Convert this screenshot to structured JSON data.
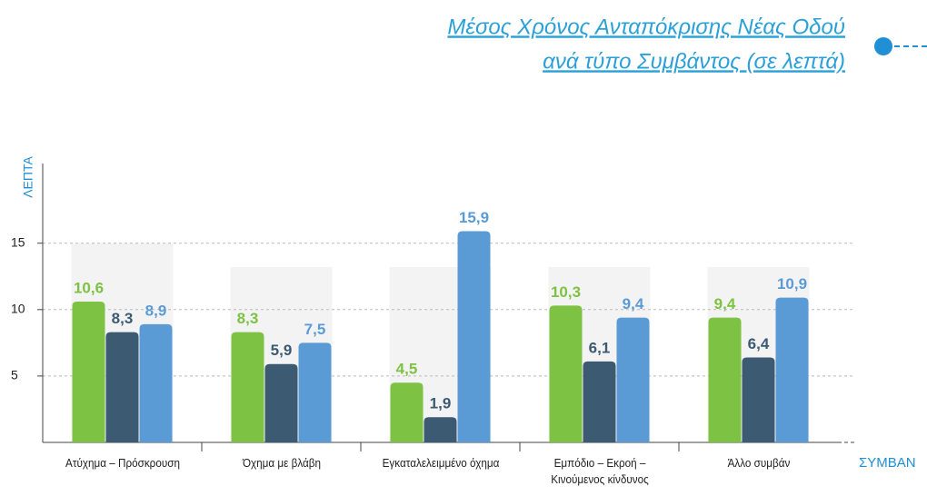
{
  "chart_data": {
    "type": "bar",
    "title": [
      "Μέσος Χρόνος Ανταπόκρισης Νέας Οδού",
      "ανά τύπο Συμβάντος (σε λεπτά)"
    ],
    "y_label": "ΛΕΠΤΑ",
    "x_label": "ΣΥΜΒΑΝ",
    "categories": [
      "Ατύχημα – Πρόσκρουση",
      "Όχημα με βλάβη",
      "Εγκαταλελειμμένο όχημα",
      "Εμπόδιο – Εκροή – Κινούμενος κίνδυνος",
      "Άλλο συμβάν"
    ],
    "series": [
      {
        "color": "#7dc242",
        "values": [
          10.6,
          8.3,
          4.5,
          10.3,
          9.4
        ],
        "value_labels": [
          "10,6",
          "8,3",
          "4,5",
          "10,3",
          "9,4"
        ]
      },
      {
        "color": "#3d5a73",
        "values": [
          8.3,
          5.9,
          1.9,
          6.1,
          6.4
        ],
        "value_labels": [
          "8,3",
          "5,9",
          "1,9",
          "6,1",
          "6,4"
        ]
      },
      {
        "color": "#5b9bd5",
        "values": [
          8.9,
          7.5,
          15.9,
          9.4,
          10.9
        ],
        "value_labels": [
          "8,9",
          "7,5",
          "15,9",
          "9,4",
          "10,9"
        ]
      }
    ],
    "ylim": [
      0,
      21
    ],
    "yticks": [
      5,
      10,
      15
    ],
    "grid": true
  }
}
